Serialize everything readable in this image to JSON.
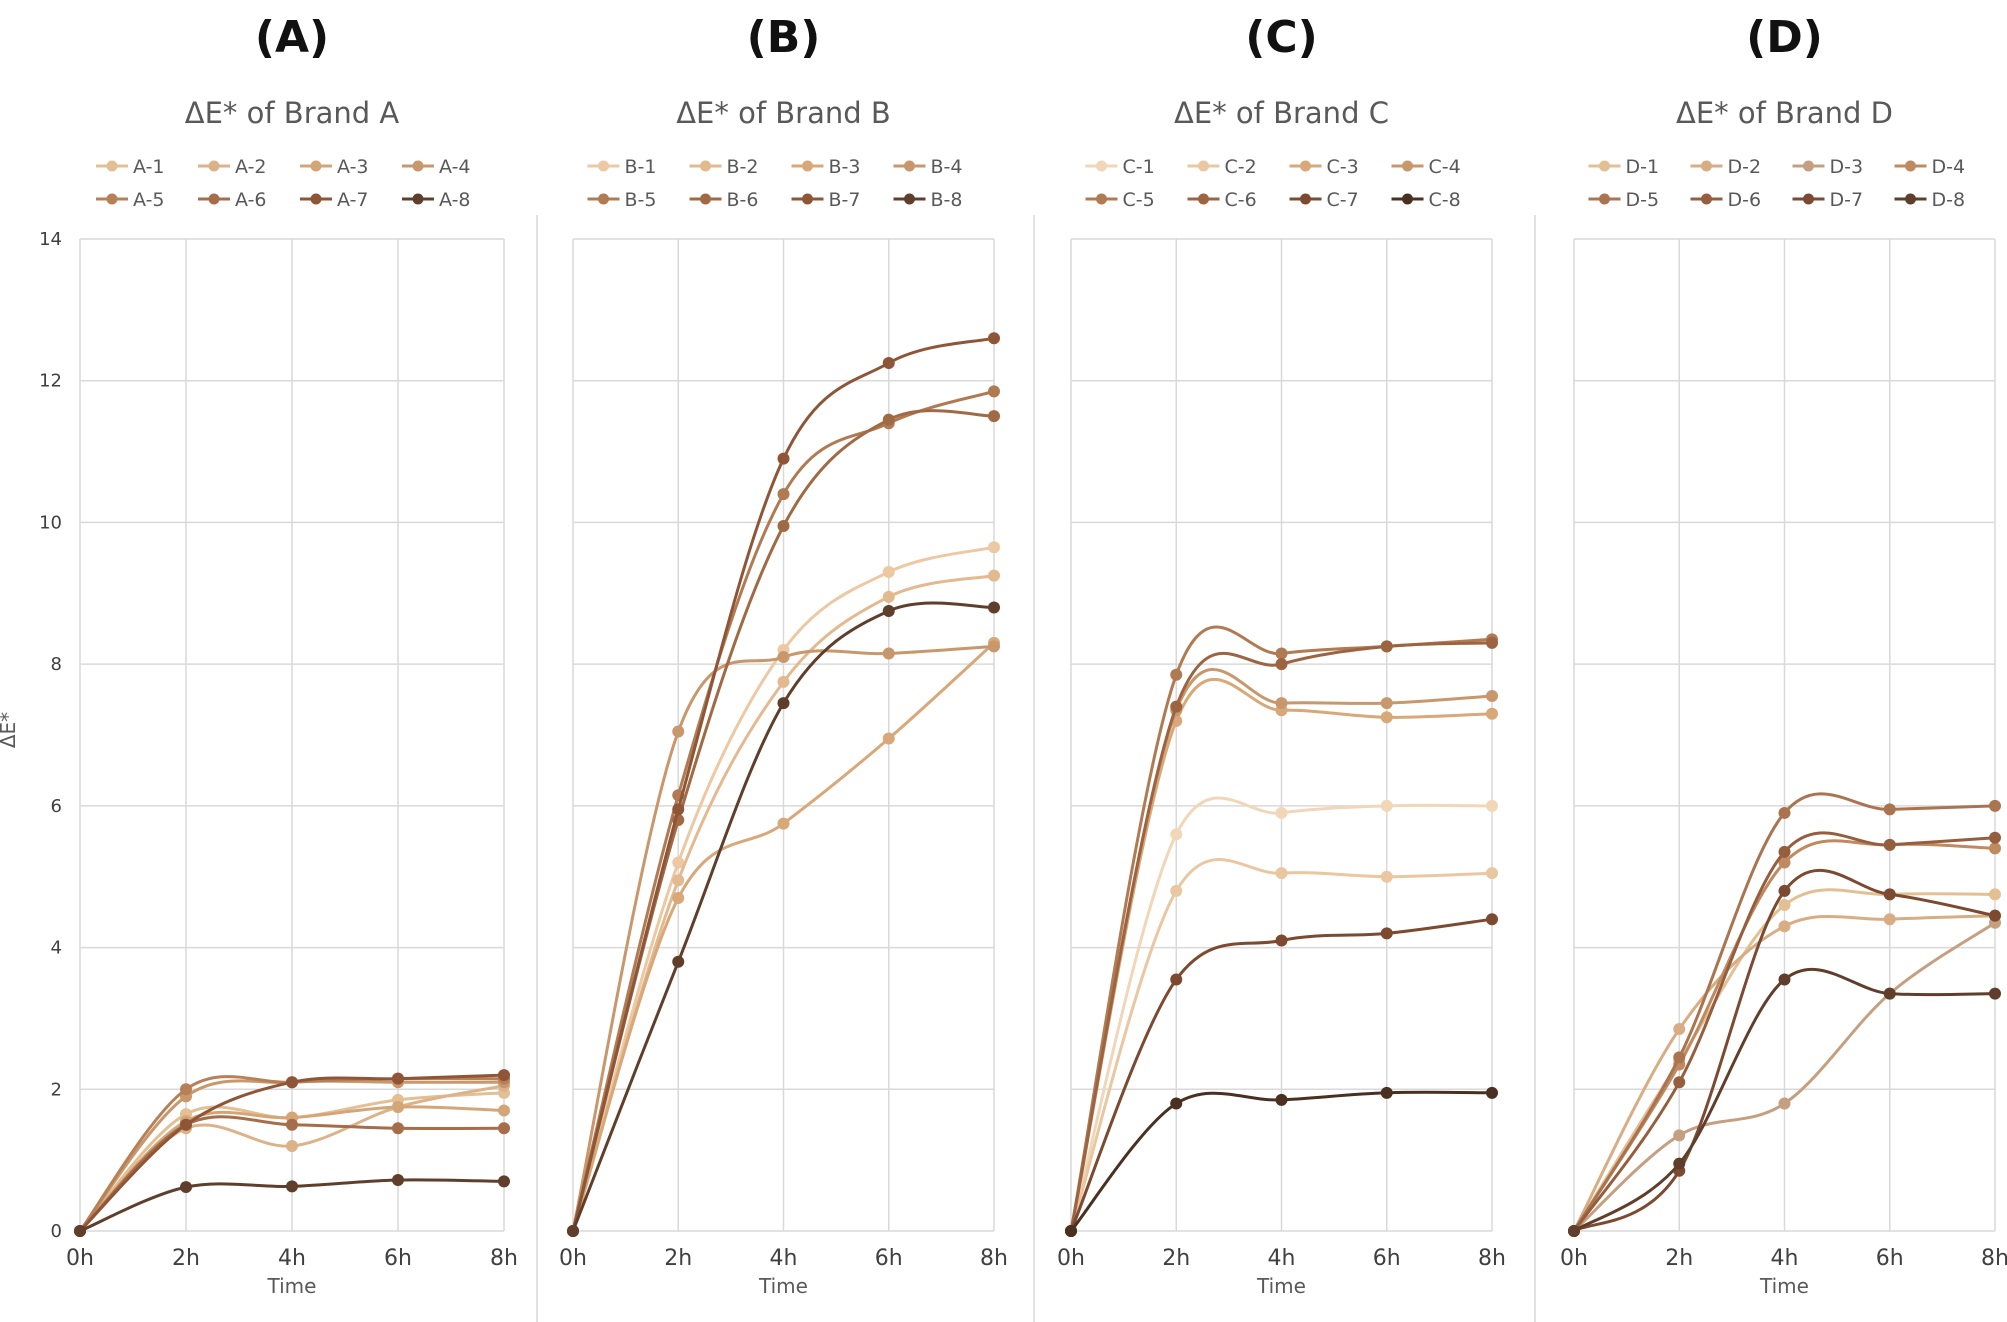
{
  "figure": {
    "y_axis_label": "ΔE*",
    "y_tick_labels": [
      "0",
      "2",
      "4",
      "6",
      "8",
      "10",
      "12",
      "14"
    ]
  },
  "chart_data": [
    {
      "type": "line",
      "panel_label": "(A)",
      "title": "ΔE* of Brand A",
      "xlabel": "Time",
      "ylabel": "ΔE*",
      "categories": [
        "0h",
        "2h",
        "4h",
        "6h",
        "8h"
      ],
      "ylim": [
        0,
        14
      ],
      "grid": true,
      "legend": "top",
      "series": [
        {
          "name": "A-1",
          "color": "#e3bf94",
          "values": [
            0,
            1.65,
            1.6,
            1.85,
            1.95
          ]
        },
        {
          "name": "A-2",
          "color": "#dcb389",
          "values": [
            0,
            1.45,
            1.2,
            1.75,
            2.05
          ]
        },
        {
          "name": "A-3",
          "color": "#d4a677",
          "values": [
            0,
            1.55,
            1.6,
            1.75,
            1.7
          ]
        },
        {
          "name": "A-4",
          "color": "#c8976b",
          "values": [
            0,
            1.9,
            2.1,
            2.1,
            2.1
          ]
        },
        {
          "name": "A-5",
          "color": "#b88057",
          "values": [
            0,
            2.0,
            2.1,
            2.15,
            2.15
          ]
        },
        {
          "name": "A-6",
          "color": "#a66d4a",
          "values": [
            0,
            1.5,
            1.5,
            1.45,
            1.45
          ]
        },
        {
          "name": "A-7",
          "color": "#8e5636",
          "values": [
            0,
            1.5,
            2.1,
            2.15,
            2.2
          ]
        },
        {
          "name": "A-8",
          "color": "#5f3f2b",
          "values": [
            0,
            0.62,
            0.63,
            0.72,
            0.7
          ]
        }
      ]
    },
    {
      "type": "line",
      "panel_label": "(B)",
      "title": "ΔE* of Brand B",
      "xlabel": "Time",
      "ylabel": "ΔE*",
      "categories": [
        "0h",
        "2h",
        "4h",
        "6h",
        "8h"
      ],
      "ylim": [
        0,
        14
      ],
      "grid": true,
      "legend": "top",
      "series": [
        {
          "name": "B-1",
          "color": "#ecc8a3",
          "values": [
            0,
            5.2,
            8.2,
            9.3,
            9.65
          ]
        },
        {
          "name": "B-2",
          "color": "#e3b98f",
          "values": [
            0,
            4.95,
            7.75,
            8.95,
            9.25
          ]
        },
        {
          "name": "B-3",
          "color": "#d8a878",
          "values": [
            0,
            4.7,
            5.75,
            6.95,
            8.3
          ]
        },
        {
          "name": "B-4",
          "color": "#c8976b",
          "values": [
            0,
            7.05,
            8.1,
            8.15,
            8.25
          ]
        },
        {
          "name": "B-5",
          "color": "#b07a52",
          "values": [
            0,
            6.15,
            10.4,
            11.4,
            11.85
          ]
        },
        {
          "name": "B-6",
          "color": "#a06a45",
          "values": [
            0,
            5.8,
            9.95,
            11.45,
            11.5
          ]
        },
        {
          "name": "B-7",
          "color": "#8e5636",
          "values": [
            0,
            5.95,
            10.9,
            12.25,
            12.6
          ]
        },
        {
          "name": "B-8",
          "color": "#5f3f2b",
          "values": [
            0,
            3.8,
            7.45,
            8.75,
            8.8
          ]
        }
      ]
    },
    {
      "type": "line",
      "panel_label": "(C)",
      "title": "ΔE* of Brand C",
      "xlabel": "Time",
      "ylabel": "ΔE*",
      "categories": [
        "0h",
        "2h",
        "4h",
        "6h",
        "8h"
      ],
      "ylim": [
        0,
        14
      ],
      "grid": true,
      "legend": "top",
      "series": [
        {
          "name": "C-1",
          "color": "#f1d6b8",
          "values": [
            0,
            5.6,
            5.9,
            6.0,
            6.0
          ]
        },
        {
          "name": "C-2",
          "color": "#e9c7a1",
          "values": [
            0,
            4.8,
            5.05,
            5.0,
            5.05
          ]
        },
        {
          "name": "C-3",
          "color": "#d8a878",
          "values": [
            0,
            7.2,
            7.35,
            7.25,
            7.3
          ]
        },
        {
          "name": "C-4",
          "color": "#c8976b",
          "values": [
            0,
            7.35,
            7.45,
            7.45,
            7.55
          ]
        },
        {
          "name": "C-5",
          "color": "#b07a52",
          "values": [
            0,
            7.85,
            8.15,
            8.25,
            8.35
          ]
        },
        {
          "name": "C-6",
          "color": "#9c6441",
          "values": [
            0,
            7.4,
            8.0,
            8.25,
            8.3
          ]
        },
        {
          "name": "C-7",
          "color": "#7b4a30",
          "values": [
            0,
            3.55,
            4.1,
            4.2,
            4.4
          ]
        },
        {
          "name": "C-8",
          "color": "#4a3020",
          "values": [
            0,
            1.8,
            1.85,
            1.95,
            1.95
          ]
        }
      ]
    },
    {
      "type": "line",
      "panel_label": "(D)",
      "title": "ΔE* of Brand D",
      "xlabel": "Time",
      "ylabel": "ΔE*",
      "categories": [
        "0h",
        "2h",
        "4h",
        "6h",
        "8h"
      ],
      "ylim": [
        0,
        14
      ],
      "grid": true,
      "legend": "top",
      "series": [
        {
          "name": "D-1",
          "color": "#e3bf94",
          "values": [
            0,
            2.4,
            4.6,
            4.75,
            4.75
          ]
        },
        {
          "name": "D-2",
          "color": "#d8ad83",
          "values": [
            0,
            2.85,
            4.3,
            4.4,
            4.45
          ]
        },
        {
          "name": "D-3",
          "color": "#c4a081",
          "values": [
            0,
            1.35,
            1.8,
            3.35,
            4.35
          ]
        },
        {
          "name": "D-4",
          "color": "#c08a60",
          "values": [
            0,
            2.35,
            5.2,
            5.45,
            5.4
          ]
        },
        {
          "name": "D-5",
          "color": "#aa7451",
          "values": [
            0,
            2.45,
            5.9,
            5.95,
            6.0
          ]
        },
        {
          "name": "D-6",
          "color": "#955f3f",
          "values": [
            0,
            2.1,
            5.35,
            5.45,
            5.55
          ]
        },
        {
          "name": "D-7",
          "color": "#7b4a30",
          "values": [
            0,
            0.85,
            4.8,
            4.75,
            4.45
          ]
        },
        {
          "name": "D-8",
          "color": "#5f3f2b",
          "values": [
            0,
            0.95,
            3.55,
            3.35,
            3.35
          ]
        }
      ]
    }
  ]
}
